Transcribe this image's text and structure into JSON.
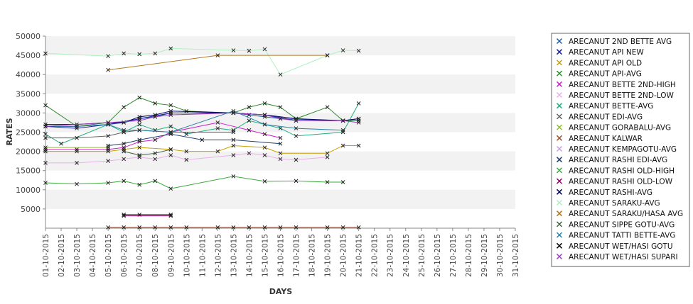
{
  "chart_data": {
    "type": "line",
    "xlabel": "DAYS",
    "ylabel": "RATES",
    "ylim": [
      0,
      50000
    ],
    "yticks": [
      5000,
      10000,
      15000,
      20000,
      25000,
      30000,
      35000,
      40000,
      45000,
      50000
    ],
    "categories": [
      "01-10-2015",
      "02-10-2015",
      "03-10-2015",
      "04-10-2015",
      "05-10-2015",
      "06-10-2015",
      "07-10-2015",
      "08-10-2015",
      "09-10-2015",
      "10-10-2015",
      "11-10-2015",
      "12-10-2015",
      "13-10-2015",
      "14-10-2015",
      "15-10-2015",
      "16-10-2015",
      "17-10-2015",
      "18-10-2015",
      "19-10-2015",
      "20-10-2015",
      "21-10-2015",
      "22-10-2015",
      "23-10-2015",
      "24-10-2015",
      "25-10-2015",
      "26-10-2015",
      "27-10-2015",
      "28-10-2015",
      "29-10-2015",
      "30-10-2015",
      "31-10-2015"
    ],
    "grid": "alternating horizontal bands",
    "legend_position": "right",
    "series": [
      {
        "name": "ARECANUT 2ND BETTE AVG",
        "color": "#1f5fa0",
        "points": [
          [
            0,
            26500
          ],
          [
            2,
            26500
          ],
          [
            4,
            27000
          ],
          [
            5,
            27500
          ],
          [
            6,
            28500
          ],
          [
            7,
            29000
          ],
          [
            8,
            30000
          ],
          [
            12,
            30000
          ],
          [
            13,
            29500
          ],
          [
            14,
            29000
          ],
          [
            15,
            28500
          ],
          [
            19,
            28000
          ],
          [
            20,
            28000
          ]
        ]
      },
      {
        "name": "ARECANUT API NEW",
        "color": "#1f1f9e",
        "points": [
          [
            0,
            26500
          ],
          [
            2,
            26000
          ],
          [
            4,
            27000
          ],
          [
            6,
            28500
          ],
          [
            8,
            30000
          ],
          [
            12,
            30000
          ],
          [
            14,
            29500
          ],
          [
            16,
            28000
          ],
          [
            19,
            28000
          ],
          [
            20,
            28500
          ]
        ]
      },
      {
        "name": "ARECANUT API OLD",
        "color": "#c8a000",
        "points": [
          [
            0,
            20000
          ],
          [
            2,
            20000
          ],
          [
            4,
            20000
          ],
          [
            5,
            20500
          ],
          [
            6,
            21000
          ],
          [
            8,
            20500
          ],
          [
            9,
            20000
          ],
          [
            11,
            20000
          ],
          [
            12,
            21500
          ],
          [
            14,
            21000
          ],
          [
            15,
            19500
          ],
          [
            18,
            19500
          ],
          [
            19,
            21500
          ],
          [
            20,
            21500
          ]
        ]
      },
      {
        "name": "ARECANUT API-AVG",
        "color": "#2e8b2e",
        "points": [
          [
            0,
            32000
          ],
          [
            2,
            26500
          ],
          [
            4,
            27500
          ],
          [
            5,
            31500
          ],
          [
            6,
            34000
          ],
          [
            7,
            32500
          ],
          [
            8,
            32000
          ],
          [
            9,
            30500
          ],
          [
            12,
            30000
          ],
          [
            13,
            31500
          ],
          [
            14,
            32500
          ],
          [
            15,
            31500
          ],
          [
            16,
            28500
          ],
          [
            18,
            31500
          ],
          [
            19,
            28000
          ],
          [
            20,
            28000
          ]
        ]
      },
      {
        "name": "ARECANUT BETTE 2ND-HIGH",
        "color": "#d020d0",
        "points": [
          [
            0,
            20500
          ],
          [
            2,
            20500
          ],
          [
            4,
            20500
          ],
          [
            5,
            21000
          ],
          [
            6,
            22500
          ],
          [
            7,
            23000
          ],
          [
            8,
            25000
          ],
          [
            11,
            27500
          ],
          [
            13,
            25500
          ],
          [
            14,
            24500
          ],
          [
            15,
            23500
          ]
        ]
      },
      {
        "name": "ARECANUT BETTE 2ND-LOW",
        "color": "#e8b0e8",
        "points": [
          [
            0,
            17000
          ],
          [
            2,
            17000
          ],
          [
            4,
            17500
          ],
          [
            5,
            18000
          ],
          [
            6,
            18500
          ],
          [
            7,
            18000
          ],
          [
            8,
            19000
          ],
          [
            9,
            17800
          ],
          [
            12,
            19000
          ],
          [
            13,
            19500
          ],
          [
            14,
            19000
          ],
          [
            15,
            18000
          ],
          [
            16,
            17800
          ],
          [
            18,
            18500
          ]
        ]
      },
      {
        "name": "ARECANUT BETTE-AVG",
        "color": "#20b080",
        "points": [
          [
            0,
            24500
          ],
          [
            1,
            22000
          ],
          [
            4,
            27000
          ],
          [
            5,
            25000
          ],
          [
            6,
            27000
          ],
          [
            7,
            25500
          ],
          [
            8,
            26500
          ],
          [
            9,
            24500
          ],
          [
            11,
            26000
          ],
          [
            12,
            25500
          ],
          [
            13,
            28000
          ],
          [
            14,
            27000
          ],
          [
            15,
            26000
          ],
          [
            16,
            24000
          ],
          [
            19,
            25000
          ],
          [
            20,
            32500
          ]
        ]
      },
      {
        "name": "ARECANUT EDI-AVG",
        "color": "#606060",
        "points": [
          [
            0,
            23500
          ],
          [
            2,
            23500
          ],
          [
            4,
            24000
          ],
          [
            5,
            25000
          ],
          [
            6,
            25500
          ],
          [
            8,
            25000
          ],
          [
            12,
            25000
          ]
        ]
      },
      {
        "name": "ARECANUT GORABALU-AVG",
        "color": "#8fbf30",
        "points": [
          [
            0,
            21000
          ],
          [
            4,
            21000
          ]
        ]
      },
      {
        "name": "ARECANUT KALWAR",
        "color": "#a0522d",
        "points": [
          [
            4,
            200
          ],
          [
            5,
            200
          ],
          [
            6,
            200
          ],
          [
            7,
            200
          ],
          [
            8,
            200
          ],
          [
            9,
            200
          ],
          [
            11,
            200
          ],
          [
            12,
            200
          ],
          [
            13,
            200
          ],
          [
            14,
            200
          ],
          [
            15,
            200
          ],
          [
            16,
            200
          ],
          [
            18,
            200
          ],
          [
            19,
            200
          ],
          [
            20,
            200
          ]
        ]
      },
      {
        "name": "ARECANUT KEMPAGOTU-AVG",
        "color": "#c8a0e0",
        "points": [
          [
            5,
            3500
          ],
          [
            6,
            3500
          ],
          [
            8,
            3500
          ]
        ]
      },
      {
        "name": "ARECANUT RASHI EDI-AVG",
        "color": "#1f3f6f",
        "points": [
          [
            4,
            21500
          ],
          [
            5,
            22000
          ],
          [
            6,
            23000
          ],
          [
            8,
            24500
          ],
          [
            10,
            23000
          ],
          [
            12,
            23000
          ],
          [
            15,
            22000
          ]
        ]
      },
      {
        "name": "ARECANUT RASHI OLD-HIGH",
        "color": "#3aaa3a",
        "points": [
          [
            0,
            11800
          ],
          [
            2,
            11500
          ],
          [
            4,
            11800
          ],
          [
            5,
            12300
          ],
          [
            6,
            11300
          ],
          [
            7,
            12300
          ],
          [
            8,
            10300
          ],
          [
            12,
            13500
          ],
          [
            14,
            12200
          ],
          [
            16,
            12300
          ],
          [
            18,
            12000
          ],
          [
            19,
            12000
          ]
        ]
      },
      {
        "name": "ARECANUT RASHI OLD-LOW",
        "color": "#900060",
        "points": [
          [
            5,
            3200
          ],
          [
            8,
            3200
          ]
        ]
      },
      {
        "name": "ARECANUT RASHI-AVG",
        "color": "#000060",
        "points": [
          [
            0,
            27000
          ],
          [
            2,
            27000
          ],
          [
            4,
            27500
          ],
          [
            5,
            27500
          ],
          [
            6,
            29000
          ],
          [
            7,
            29500
          ],
          [
            8,
            30500
          ],
          [
            12,
            30000
          ],
          [
            14,
            29500
          ],
          [
            16,
            28500
          ],
          [
            19,
            28000
          ],
          [
            20,
            28500
          ]
        ]
      },
      {
        "name": "ARECANUT SARAKU-AVG",
        "color": "#b0f0c0",
        "points": [
          [
            0,
            45500
          ],
          [
            4,
            44800
          ],
          [
            5,
            45500
          ],
          [
            6,
            45300
          ],
          [
            7,
            45500
          ],
          [
            8,
            46800
          ],
          [
            12,
            46300
          ],
          [
            13,
            46200
          ],
          [
            14,
            46600
          ],
          [
            15,
            40000
          ],
          [
            18,
            45000
          ],
          [
            19,
            46300
          ],
          [
            20,
            46200
          ]
        ]
      },
      {
        "name": "ARECANUT SARAKU/HASA AVG",
        "color": "#b07820",
        "points": [
          [
            4,
            41200
          ],
          [
            11,
            45000
          ],
          [
            18,
            45000
          ]
        ]
      },
      {
        "name": "ARECANUT SIPPE GOTU-AVG",
        "color": "#406040",
        "points": [
          [
            5,
            20000
          ],
          [
            6,
            19000
          ],
          [
            7,
            19500
          ],
          [
            8,
            20500
          ]
        ]
      },
      {
        "name": "ARECANUT TATTI BETTE-AVG",
        "color": "#2a7fa8",
        "points": [
          [
            2,
            26500
          ],
          [
            4,
            27000
          ],
          [
            5,
            25500
          ],
          [
            6,
            25500
          ],
          [
            8,
            25000
          ],
          [
            12,
            30500
          ],
          [
            14,
            27000
          ],
          [
            16,
            26000
          ],
          [
            19,
            25500
          ]
        ]
      },
      {
        "name": "ARECANUT WET/HASI GOTU",
        "color": "#000000",
        "points": [
          [
            5,
            3500
          ],
          [
            8,
            3500
          ]
        ]
      },
      {
        "name": "ARECANUT WET/HASI SUPARI",
        "color": "#a040c0",
        "points": [
          [
            0,
            26500
          ],
          [
            4,
            27500
          ],
          [
            6,
            28000
          ],
          [
            7,
            29000
          ],
          [
            8,
            29500
          ],
          [
            12,
            30000
          ],
          [
            14,
            29500
          ],
          [
            15,
            28500
          ],
          [
            16,
            28000
          ],
          [
            19,
            28000
          ],
          [
            20,
            27500
          ]
        ]
      }
    ]
  }
}
